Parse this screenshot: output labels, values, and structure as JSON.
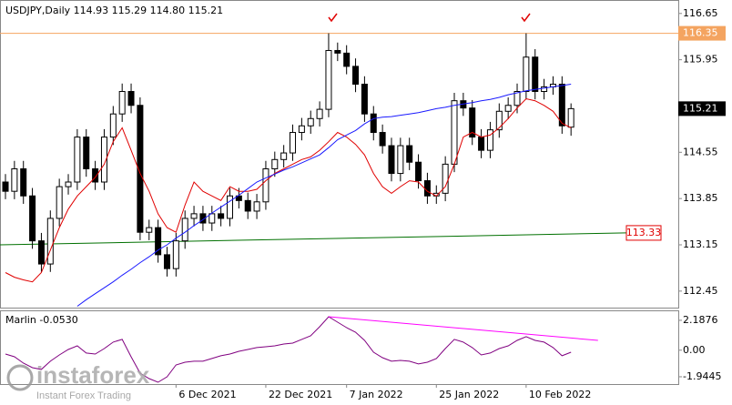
{
  "chart_data": {
    "type": "candlestick",
    "header": "USDJPY,Daily  114.93 115.29 114.80 115.21",
    "ylim": [
      112.2,
      116.84
    ],
    "yticks": [
      116.65,
      115.95,
      115.25,
      114.55,
      113.85,
      113.15,
      112.45
    ],
    "x_labels": [
      "6 Dec 2021",
      "22 Dec 2021",
      "7 Jan 2022",
      "25 Jan 2022",
      "10 Feb 2022"
    ],
    "x_label_index": [
      19,
      29,
      38,
      48,
      58
    ],
    "open": [
      114.1,
      113.96,
      114.3,
      113.89,
      113.21,
      112.86,
      113.55,
      114.03,
      114.1,
      114.78,
      114.3,
      114.1,
      114.78,
      115.13,
      115.47,
      115.26,
      113.34,
      113.41,
      113.0,
      112.79,
      113.21,
      113.55,
      113.62,
      113.48,
      113.62,
      113.55,
      113.89,
      113.82,
      113.66,
      113.8,
      114.3,
      114.44,
      114.54,
      114.85,
      114.95,
      115.06,
      115.2,
      116.09,
      116.05,
      115.85,
      115.58,
      115.13,
      114.85,
      114.65,
      114.23,
      114.65,
      114.4,
      114.12,
      113.89,
      113.93,
      114.37,
      115.33,
      115.22,
      114.78,
      114.58,
      114.89,
      115.17,
      115.26,
      115.47,
      115.99,
      115.47,
      115.54,
      115.58,
      114.93
    ],
    "high": [
      114.22,
      114.42,
      114.42,
      114.01,
      113.33,
      113.67,
      114.15,
      114.22,
      114.9,
      114.9,
      114.42,
      114.9,
      115.25,
      115.59,
      115.59,
      115.38,
      113.53,
      113.53,
      113.12,
      113.33,
      113.67,
      113.74,
      113.74,
      113.74,
      113.74,
      114.01,
      114.01,
      113.94,
      113.92,
      114.42,
      114.56,
      114.66,
      114.97,
      115.07,
      115.18,
      115.32,
      116.35,
      116.21,
      116.17,
      115.97,
      115.7,
      115.25,
      114.97,
      114.77,
      114.77,
      114.77,
      114.52,
      114.24,
      114.05,
      114.49,
      115.45,
      115.45,
      115.34,
      114.9,
      115.01,
      115.29,
      115.38,
      115.59,
      116.35,
      116.11,
      115.66,
      115.7,
      115.7,
      115.29
    ],
    "low": [
      113.84,
      113.84,
      113.77,
      113.09,
      112.74,
      112.74,
      113.43,
      113.91,
      113.98,
      114.18,
      113.98,
      113.98,
      114.66,
      115.01,
      115.14,
      113.22,
      113.22,
      112.88,
      112.67,
      112.67,
      113.09,
      113.43,
      113.36,
      113.36,
      113.43,
      113.43,
      113.7,
      113.54,
      113.54,
      113.68,
      114.18,
      114.32,
      114.42,
      114.73,
      114.83,
      114.94,
      115.08,
      115.93,
      115.73,
      115.46,
      115.01,
      114.73,
      114.53,
      114.11,
      114.11,
      114.28,
      114.0,
      113.77,
      113.77,
      113.81,
      114.25,
      115.1,
      114.66,
      114.46,
      114.46,
      114.77,
      115.05,
      115.14,
      115.35,
      115.35,
      115.35,
      115.42,
      114.83,
      114.8
    ],
    "close": [
      113.96,
      114.3,
      113.89,
      113.21,
      112.86,
      113.55,
      114.03,
      114.1,
      114.78,
      114.3,
      114.1,
      114.78,
      115.13,
      115.47,
      115.26,
      113.34,
      113.41,
      113.0,
      112.79,
      113.21,
      113.55,
      113.62,
      113.48,
      113.62,
      113.55,
      113.89,
      113.82,
      113.66,
      113.8,
      114.3,
      114.44,
      114.54,
      114.85,
      114.95,
      115.06,
      115.2,
      116.09,
      116.05,
      115.85,
      115.58,
      115.13,
      114.85,
      114.65,
      114.23,
      114.65,
      114.4,
      114.12,
      113.89,
      113.93,
      114.37,
      115.33,
      115.22,
      114.78,
      114.58,
      114.89,
      115.17,
      115.26,
      115.47,
      115.99,
      115.47,
      115.54,
      115.58,
      114.95,
      115.21
    ],
    "series": [
      {
        "color": "#e00000",
        "values": [
          112.73,
          112.66,
          112.62,
          112.59,
          112.73,
          113.07,
          113.41,
          113.69,
          113.89,
          114.03,
          114.17,
          114.37,
          114.71,
          114.92,
          114.58,
          114.23,
          113.96,
          113.62,
          113.41,
          113.34,
          113.75,
          114.1,
          113.96,
          113.89,
          113.82,
          114.03,
          113.96,
          113.96,
          113.99,
          114.12,
          114.23,
          114.3,
          114.37,
          114.44,
          114.48,
          114.58,
          114.71,
          114.85,
          114.78,
          114.67,
          114.51,
          114.23,
          114.03,
          113.93,
          114.03,
          114.12,
          114.1,
          113.96,
          113.89,
          114.03,
          114.37,
          114.78,
          114.85,
          114.78,
          114.81,
          114.92,
          115.06,
          115.22,
          115.36,
          115.33,
          115.26,
          115.17,
          114.99,
          114.92
        ]
      },
      {
        "color": "#1a1aff",
        "values": [
          null,
          null,
          null,
          null,
          null,
          null,
          null,
          null,
          112.22,
          112.32,
          112.41,
          112.5,
          112.59,
          112.69,
          112.78,
          112.88,
          112.97,
          113.07,
          113.15,
          113.25,
          113.34,
          113.44,
          113.53,
          113.63,
          113.72,
          113.81,
          113.9,
          114.0,
          114.1,
          114.16,
          114.22,
          114.28,
          114.33,
          114.39,
          114.45,
          114.51,
          114.62,
          114.74,
          114.81,
          114.88,
          114.98,
          115.06,
          115.08,
          115.09,
          115.11,
          115.13,
          115.15,
          115.18,
          115.21,
          115.23,
          115.26,
          115.28,
          115.3,
          115.33,
          115.35,
          115.38,
          115.42,
          115.45,
          115.48,
          115.5,
          115.52,
          115.54,
          115.56,
          115.58
        ]
      }
    ],
    "ma_long": {
      "color": "#007000",
      "values": [
        113.15,
        113.33
      ]
    },
    "resistance": {
      "value": 116.35,
      "color": "#f4a460"
    },
    "oscillator": {
      "title": "Marlin -0.0530",
      "color": "#800080",
      "ylim": [
        -2.48,
        2.85
      ],
      "yticks": [
        2.1876,
        {
          "value": 0,
          "label": "0.00"
        },
        -1.9445
      ],
      "values": [
        -0.28,
        -0.48,
        -0.95,
        -1.28,
        -1.41,
        -0.81,
        -0.35,
        0.05,
        0.32,
        -0.21,
        -0.28,
        0.12,
        0.59,
        0.79,
        -0.48,
        -1.68,
        -2.08,
        -2.35,
        -1.95,
        -1.08,
        -0.88,
        -0.81,
        -0.81,
        -0.61,
        -0.41,
        -0.28,
        -0.08,
        0.05,
        0.19,
        0.25,
        0.32,
        0.45,
        0.52,
        0.79,
        1.05,
        1.72,
        2.45,
        2.05,
        1.65,
        1.32,
        0.72,
        -0.15,
        -0.55,
        -0.81,
        -0.75,
        -0.81,
        -1.01,
        -0.88,
        -0.61,
        0.12,
        0.79,
        0.59,
        0.19,
        -0.35,
        -0.21,
        0.12,
        0.32,
        0.72,
        0.99,
        0.72,
        0.59,
        0.19,
        -0.41,
        -0.15
      ],
      "trendline": {
        "color": "#ff00ff",
        "x": [
          36,
          66
        ],
        "values": [
          2.45,
          0.72
        ]
      }
    },
    "watermark": {
      "brand": "instaforex",
      "tagline": "Instant Forex Trading"
    }
  }
}
